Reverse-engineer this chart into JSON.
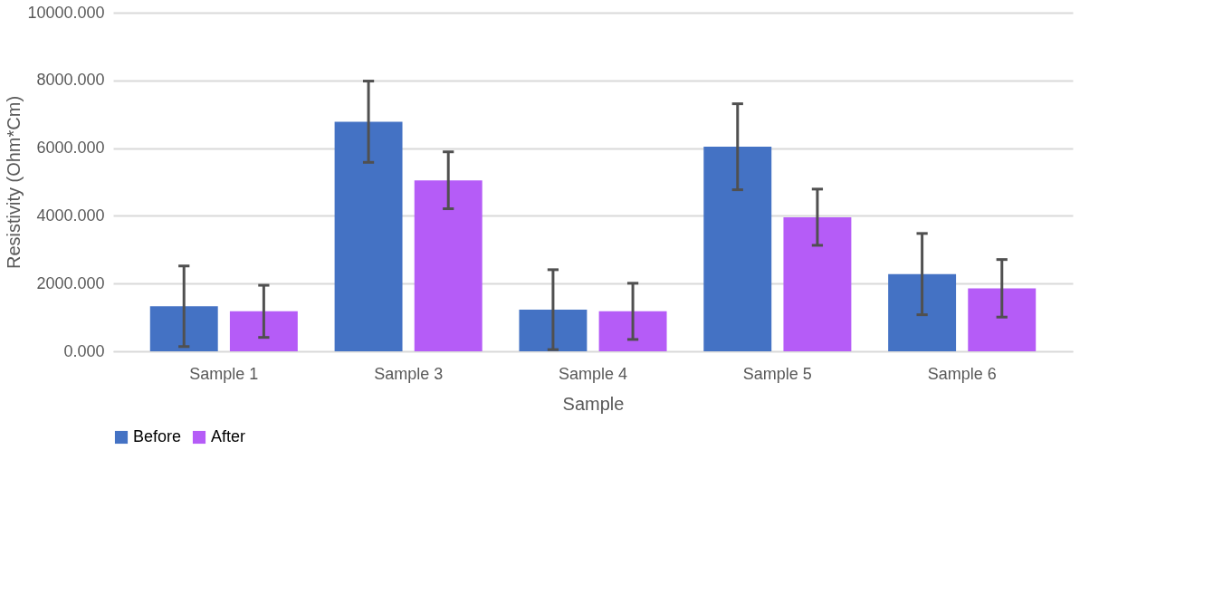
{
  "chart_data": {
    "type": "bar",
    "xlabel": "Sample",
    "ylabel": "Resistivity (Ohm*Cm)",
    "categories": [
      "Sample 1",
      "Sample 3",
      "Sample 4",
      "Sample 5",
      "Sample 6"
    ],
    "series": [
      {
        "name": "Before",
        "color": "#4472c4",
        "values": [
          1330,
          6780,
          1230,
          6040,
          2280
        ],
        "errors": [
          1190,
          1200,
          1180,
          1270,
          1200
        ]
      },
      {
        "name": "After",
        "color": "#b55cf7",
        "values": [
          1180,
          5050,
          1180,
          3960,
          1860
        ],
        "errors": [
          770,
          840,
          830,
          830,
          850
        ]
      }
    ],
    "ylim": [
      0,
      10000
    ],
    "yticks": [
      {
        "value": 0,
        "label": "0.000"
      },
      {
        "value": 2000,
        "label": "2000.000"
      },
      {
        "value": 4000,
        "label": "4000.000"
      },
      {
        "value": 6000,
        "label": "6000.000"
      },
      {
        "value": 8000,
        "label": "8000.000"
      },
      {
        "value": 10000,
        "label": "10000.000"
      }
    ],
    "grid": "y",
    "legend": "bottom"
  }
}
